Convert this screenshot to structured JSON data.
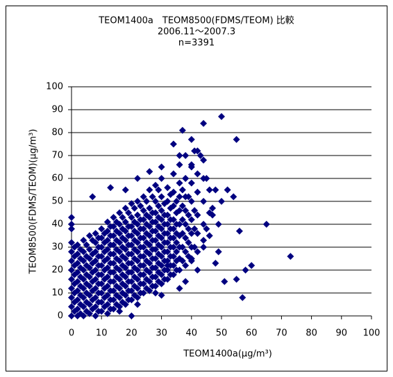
{
  "chart_data": {
    "type": "scatter",
    "title": "TEOM1400a　TEOM8500(FDMS/TEOM) 比較",
    "subtitle": "2006.11～2007.3",
    "annotation": "n=3391",
    "x_label": "TEOM1400a(μg/m³)",
    "y_label": "TEOM8500(FDMS/TEOM)(μg/m³)",
    "color": "#000080",
    "grid": true,
    "xlim": [
      0,
      100
    ],
    "xticks": [
      0,
      10,
      20,
      30,
      40,
      50,
      60,
      70,
      80,
      90,
      100
    ],
    "ylim": [
      0,
      100
    ],
    "yticks": [
      0,
      10,
      20,
      30,
      40,
      50,
      60,
      70,
      80,
      90,
      100
    ],
    "points": [
      [
        0,
        0
      ],
      [
        0,
        4
      ],
      [
        0,
        8
      ],
      [
        0,
        12
      ],
      [
        0,
        16
      ],
      [
        0,
        20
      ],
      [
        0,
        24
      ],
      [
        0,
        28
      ],
      [
        0,
        32
      ],
      [
        2,
        0
      ],
      [
        2,
        3
      ],
      [
        2,
        7
      ],
      [
        2,
        11
      ],
      [
        2,
        15
      ],
      [
        2,
        19
      ],
      [
        2,
        23
      ],
      [
        2,
        27
      ],
      [
        2,
        31
      ],
      [
        4,
        0
      ],
      [
        4,
        4
      ],
      [
        4,
        8
      ],
      [
        4,
        12
      ],
      [
        4,
        16
      ],
      [
        4,
        20
      ],
      [
        4,
        24
      ],
      [
        4,
        28
      ],
      [
        4,
        33
      ],
      [
        6,
        1
      ],
      [
        6,
        5
      ],
      [
        6,
        9
      ],
      [
        6,
        13
      ],
      [
        6,
        17
      ],
      [
        6,
        21
      ],
      [
        6,
        25
      ],
      [
        6,
        29
      ],
      [
        6,
        35
      ],
      [
        8,
        0
      ],
      [
        8,
        4
      ],
      [
        8,
        8
      ],
      [
        8,
        12
      ],
      [
        8,
        16
      ],
      [
        8,
        20
      ],
      [
        8,
        24
      ],
      [
        8,
        28
      ],
      [
        8,
        32
      ],
      [
        8,
        36
      ],
      [
        10,
        2
      ],
      [
        10,
        6
      ],
      [
        10,
        10
      ],
      [
        10,
        14
      ],
      [
        10,
        18
      ],
      [
        10,
        22
      ],
      [
        10,
        26
      ],
      [
        10,
        30
      ],
      [
        10,
        34
      ],
      [
        10,
        38
      ],
      [
        12,
        1
      ],
      [
        12,
        5
      ],
      [
        12,
        9
      ],
      [
        12,
        13
      ],
      [
        12,
        17
      ],
      [
        12,
        21
      ],
      [
        12,
        25
      ],
      [
        12,
        29
      ],
      [
        12,
        33
      ],
      [
        12,
        37
      ],
      [
        12,
        41
      ],
      [
        14,
        3
      ],
      [
        14,
        7
      ],
      [
        14,
        11
      ],
      [
        14,
        15
      ],
      [
        14,
        19
      ],
      [
        14,
        23
      ],
      [
        14,
        27
      ],
      [
        14,
        31
      ],
      [
        14,
        35
      ],
      [
        14,
        39
      ],
      [
        14,
        43
      ],
      [
        16,
        4
      ],
      [
        16,
        8
      ],
      [
        16,
        12
      ],
      [
        16,
        16
      ],
      [
        16,
        20
      ],
      [
        16,
        24
      ],
      [
        16,
        28
      ],
      [
        16,
        32
      ],
      [
        16,
        36
      ],
      [
        16,
        40
      ],
      [
        16,
        45
      ],
      [
        18,
        5
      ],
      [
        18,
        9
      ],
      [
        18,
        13
      ],
      [
        18,
        17
      ],
      [
        18,
        21
      ],
      [
        18,
        25
      ],
      [
        18,
        29
      ],
      [
        18,
        33
      ],
      [
        18,
        37
      ],
      [
        18,
        41
      ],
      [
        18,
        47
      ],
      [
        20,
        7
      ],
      [
        20,
        11
      ],
      [
        20,
        15
      ],
      [
        20,
        19
      ],
      [
        20,
        23
      ],
      [
        20,
        27
      ],
      [
        20,
        31
      ],
      [
        20,
        35
      ],
      [
        20,
        39
      ],
      [
        20,
        43
      ],
      [
        20,
        49
      ],
      [
        22,
        8
      ],
      [
        22,
        12
      ],
      [
        22,
        16
      ],
      [
        22,
        20
      ],
      [
        22,
        24
      ],
      [
        22,
        28
      ],
      [
        22,
        32
      ],
      [
        22,
        36
      ],
      [
        22,
        40
      ],
      [
        22,
        44
      ],
      [
        22,
        50
      ],
      [
        24,
        10
      ],
      [
        24,
        14
      ],
      [
        24,
        18
      ],
      [
        24,
        22
      ],
      [
        24,
        26
      ],
      [
        24,
        30
      ],
      [
        24,
        34
      ],
      [
        24,
        38
      ],
      [
        24,
        42
      ],
      [
        24,
        46
      ],
      [
        24,
        52
      ],
      [
        26,
        11
      ],
      [
        26,
        15
      ],
      [
        26,
        19
      ],
      [
        26,
        23
      ],
      [
        26,
        27
      ],
      [
        26,
        31
      ],
      [
        26,
        35
      ],
      [
        26,
        39
      ],
      [
        26,
        43
      ],
      [
        26,
        47
      ],
      [
        26,
        55
      ],
      [
        28,
        13
      ],
      [
        28,
        17
      ],
      [
        28,
        21
      ],
      [
        28,
        25
      ],
      [
        28,
        29
      ],
      [
        28,
        33
      ],
      [
        28,
        37
      ],
      [
        28,
        41
      ],
      [
        28,
        45
      ],
      [
        28,
        50
      ],
      [
        28,
        57
      ],
      [
        30,
        14
      ],
      [
        30,
        18
      ],
      [
        30,
        22
      ],
      [
        30,
        26
      ],
      [
        30,
        30
      ],
      [
        30,
        34
      ],
      [
        30,
        38
      ],
      [
        30,
        42
      ],
      [
        30,
        46
      ],
      [
        30,
        52
      ],
      [
        30,
        60
      ],
      [
        32,
        16
      ],
      [
        32,
        20
      ],
      [
        32,
        24
      ],
      [
        32,
        28
      ],
      [
        32,
        32
      ],
      [
        32,
        36
      ],
      [
        32,
        40
      ],
      [
        32,
        44
      ],
      [
        32,
        50
      ],
      [
        32,
        56
      ],
      [
        34,
        18
      ],
      [
        34,
        22
      ],
      [
        34,
        26
      ],
      [
        34,
        30
      ],
      [
        34,
        34
      ],
      [
        34,
        38
      ],
      [
        34,
        42
      ],
      [
        34,
        48
      ],
      [
        34,
        54
      ],
      [
        34,
        62
      ],
      [
        36,
        20
      ],
      [
        36,
        25
      ],
      [
        36,
        30
      ],
      [
        36,
        35
      ],
      [
        36,
        40
      ],
      [
        36,
        46
      ],
      [
        36,
        52
      ],
      [
        36,
        58
      ],
      [
        36,
        66
      ],
      [
        38,
        22
      ],
      [
        38,
        28
      ],
      [
        38,
        34
      ],
      [
        38,
        40
      ],
      [
        38,
        46
      ],
      [
        38,
        52
      ],
      [
        38,
        60
      ],
      [
        38,
        70
      ],
      [
        40,
        24
      ],
      [
        40,
        30
      ],
      [
        40,
        36
      ],
      [
        40,
        42
      ],
      [
        40,
        50
      ],
      [
        40,
        58
      ],
      [
        40,
        66
      ],
      [
        42,
        28
      ],
      [
        42,
        36
      ],
      [
        42,
        44
      ],
      [
        42,
        54
      ],
      [
        42,
        62
      ],
      [
        42,
        72
      ],
      [
        44,
        30
      ],
      [
        44,
        40
      ],
      [
        44,
        50
      ],
      [
        44,
        60
      ],
      [
        44,
        68
      ],
      [
        46,
        35
      ],
      [
        46,
        45
      ],
      [
        46,
        55
      ],
      [
        1,
        2
      ],
      [
        1,
        6
      ],
      [
        1,
        10
      ],
      [
        1,
        14
      ],
      [
        1,
        18
      ],
      [
        1,
        22
      ],
      [
        1,
        26
      ],
      [
        1,
        30
      ],
      [
        3,
        1
      ],
      [
        3,
        5
      ],
      [
        3,
        9
      ],
      [
        3,
        13
      ],
      [
        3,
        17
      ],
      [
        3,
        21
      ],
      [
        3,
        25
      ],
      [
        3,
        29
      ],
      [
        5,
        2
      ],
      [
        5,
        6
      ],
      [
        5,
        10
      ],
      [
        5,
        14
      ],
      [
        5,
        18
      ],
      [
        5,
        22
      ],
      [
        5,
        26
      ],
      [
        5,
        31
      ],
      [
        7,
        3
      ],
      [
        7,
        7
      ],
      [
        7,
        11
      ],
      [
        7,
        15
      ],
      [
        7,
        19
      ],
      [
        7,
        23
      ],
      [
        7,
        27
      ],
      [
        7,
        33
      ],
      [
        9,
        2
      ],
      [
        9,
        6
      ],
      [
        9,
        10
      ],
      [
        9,
        14
      ],
      [
        9,
        18
      ],
      [
        9,
        22
      ],
      [
        9,
        26
      ],
      [
        9,
        30
      ],
      [
        9,
        34
      ],
      [
        11,
        4
      ],
      [
        11,
        8
      ],
      [
        11,
        12
      ],
      [
        11,
        16
      ],
      [
        11,
        20
      ],
      [
        11,
        24
      ],
      [
        11,
        28
      ],
      [
        11,
        32
      ],
      [
        11,
        36
      ],
      [
        13,
        3
      ],
      [
        13,
        7
      ],
      [
        13,
        11
      ],
      [
        13,
        15
      ],
      [
        13,
        19
      ],
      [
        13,
        23
      ],
      [
        13,
        27
      ],
      [
        13,
        31
      ],
      [
        13,
        35
      ],
      [
        13,
        39
      ],
      [
        15,
        5
      ],
      [
        15,
        9
      ],
      [
        15,
        13
      ],
      [
        15,
        17
      ],
      [
        15,
        21
      ],
      [
        15,
        25
      ],
      [
        15,
        29
      ],
      [
        15,
        33
      ],
      [
        15,
        37
      ],
      [
        15,
        41
      ],
      [
        17,
        6
      ],
      [
        17,
        10
      ],
      [
        17,
        14
      ],
      [
        17,
        18
      ],
      [
        17,
        22
      ],
      [
        17,
        26
      ],
      [
        17,
        30
      ],
      [
        17,
        34
      ],
      [
        17,
        38
      ],
      [
        17,
        43
      ],
      [
        19,
        7
      ],
      [
        19,
        11
      ],
      [
        19,
        15
      ],
      [
        19,
        19
      ],
      [
        19,
        23
      ],
      [
        19,
        27
      ],
      [
        19,
        31
      ],
      [
        19,
        35
      ],
      [
        19,
        39
      ],
      [
        19,
        45
      ],
      [
        21,
        9
      ],
      [
        21,
        13
      ],
      [
        21,
        17
      ],
      [
        21,
        21
      ],
      [
        21,
        25
      ],
      [
        21,
        29
      ],
      [
        21,
        33
      ],
      [
        21,
        37
      ],
      [
        21,
        41
      ],
      [
        21,
        47
      ],
      [
        23,
        10
      ],
      [
        23,
        14
      ],
      [
        23,
        18
      ],
      [
        23,
        22
      ],
      [
        23,
        26
      ],
      [
        23,
        30
      ],
      [
        23,
        34
      ],
      [
        23,
        38
      ],
      [
        23,
        42
      ],
      [
        23,
        48
      ],
      [
        25,
        12
      ],
      [
        25,
        16
      ],
      [
        25,
        20
      ],
      [
        25,
        24
      ],
      [
        25,
        28
      ],
      [
        25,
        32
      ],
      [
        25,
        36
      ],
      [
        25,
        40
      ],
      [
        25,
        44
      ],
      [
        25,
        50
      ],
      [
        27,
        13
      ],
      [
        27,
        17
      ],
      [
        27,
        21
      ],
      [
        27,
        25
      ],
      [
        27,
        29
      ],
      [
        27,
        33
      ],
      [
        27,
        37
      ],
      [
        27,
        41
      ],
      [
        27,
        45
      ],
      [
        27,
        52
      ],
      [
        29,
        15
      ],
      [
        29,
        19
      ],
      [
        29,
        23
      ],
      [
        29,
        27
      ],
      [
        29,
        31
      ],
      [
        29,
        35
      ],
      [
        29,
        39
      ],
      [
        29,
        43
      ],
      [
        29,
        48
      ],
      [
        29,
        55
      ],
      [
        31,
        16
      ],
      [
        31,
        20
      ],
      [
        31,
        24
      ],
      [
        31,
        28
      ],
      [
        31,
        32
      ],
      [
        31,
        36
      ],
      [
        31,
        40
      ],
      [
        31,
        44
      ],
      [
        31,
        49
      ],
      [
        33,
        18
      ],
      [
        33,
        22
      ],
      [
        33,
        26
      ],
      [
        33,
        30
      ],
      [
        33,
        34
      ],
      [
        33,
        38
      ],
      [
        33,
        42
      ],
      [
        33,
        47
      ],
      [
        33,
        53
      ],
      [
        35,
        20
      ],
      [
        35,
        24
      ],
      [
        35,
        28
      ],
      [
        35,
        32
      ],
      [
        35,
        36
      ],
      [
        35,
        40
      ],
      [
        35,
        45
      ],
      [
        35,
        50
      ],
      [
        37,
        24
      ],
      [
        37,
        30
      ],
      [
        37,
        36
      ],
      [
        37,
        42
      ],
      [
        37,
        48
      ],
      [
        37,
        55
      ],
      [
        39,
        26
      ],
      [
        39,
        32
      ],
      [
        39,
        38
      ],
      [
        39,
        44
      ],
      [
        39,
        52
      ],
      [
        41,
        30
      ],
      [
        41,
        38
      ],
      [
        41,
        46
      ],
      [
        50,
        87
      ],
      [
        44,
        84
      ],
      [
        37,
        81
      ],
      [
        55,
        77
      ],
      [
        65,
        40
      ],
      [
        73,
        26
      ],
      [
        56,
        37
      ],
      [
        57,
        8
      ],
      [
        60,
        22
      ],
      [
        58,
        20
      ],
      [
        51,
        15
      ],
      [
        55,
        16
      ],
      [
        48,
        23
      ],
      [
        49,
        28
      ],
      [
        45,
        38
      ],
      [
        47,
        47
      ],
      [
        50,
        50
      ],
      [
        52,
        55
      ],
      [
        54,
        52
      ],
      [
        0,
        43
      ],
      [
        0,
        40
      ],
      [
        0,
        38
      ],
      [
        13,
        56
      ],
      [
        7,
        52
      ],
      [
        20,
        0
      ],
      [
        16,
        2
      ],
      [
        22,
        5
      ],
      [
        28,
        10
      ],
      [
        30,
        9
      ],
      [
        32,
        22
      ],
      [
        36,
        12
      ],
      [
        38,
        15
      ],
      [
        40,
        25
      ],
      [
        42,
        20
      ],
      [
        44,
        33
      ],
      [
        34,
        75
      ],
      [
        40,
        77
      ],
      [
        41,
        72
      ],
      [
        43,
        70
      ],
      [
        36,
        70
      ],
      [
        30,
        65
      ],
      [
        26,
        63
      ],
      [
        22,
        60
      ],
      [
        18,
        55
      ],
      [
        38,
        60
      ],
      [
        40,
        65
      ],
      [
        45,
        60
      ],
      [
        48,
        55
      ],
      [
        47,
        44
      ],
      [
        49,
        40
      ]
    ]
  }
}
